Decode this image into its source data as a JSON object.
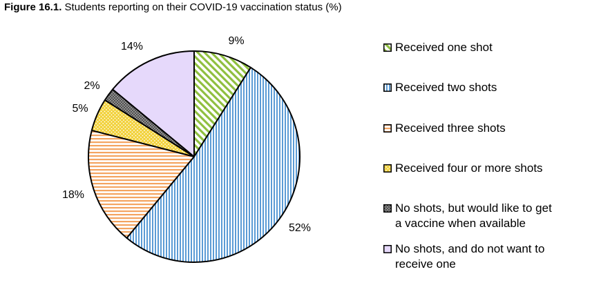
{
  "title": {
    "prefix": "Figure 16.1.",
    "text": " Students reporting on their COVID-19 vaccination status (%)"
  },
  "chart_data": {
    "type": "pie",
    "title": "Figure 16.1. Students reporting on their COVID-19 vaccination status (%)",
    "categories": [
      "Received one shot",
      "Received two shots",
      "Received three shots",
      "Received four or more shots",
      "No shots, but would like to get a vaccine when available",
      "No shots, and do not want to receive one"
    ],
    "values": [
      9,
      52,
      18,
      5,
      2,
      14
    ],
    "value_labels": [
      "9%",
      "52%",
      "18%",
      "5%",
      "2%",
      "14%"
    ],
    "colors": [
      "#8fbf3f",
      "#5b9bd5",
      "#f4a460",
      "#f2d23c",
      "#808080",
      "#e6d9fb"
    ],
    "patterns": [
      "diagonal-stripes",
      "vertical-stripes",
      "horizontal-stripes",
      "dots",
      "crosshatch",
      "solid"
    ],
    "legend_position": "right",
    "legend_labels": [
      "Received one shot",
      "Received two shots",
      "Received three shots",
      "Received four or more shots",
      "No shots, but would like to get\na vaccine when available",
      "No shots, and do not want to\nreceive one"
    ]
  }
}
